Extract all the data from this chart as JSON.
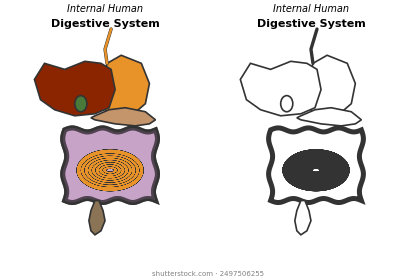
{
  "title_italic": "Internal Human",
  "title_bold": "Digestive System",
  "bg_color": "#ffffff",
  "outline_color": "#333333",
  "liver_color": "#8B2500",
  "stomach_color": "#E8922A",
  "gallbladder_color": "#4A7A3A",
  "pancreas_color": "#C4956A",
  "large_intestine_color": "#B07DB0",
  "small_intestine_color": "#E8922A",
  "rectum_color": "#8B7355",
  "esophagus_color": "#E8922A",
  "watermark": "shutterstock.com · 2497506255",
  "lw": 1.2,
  "fig_width": 4.16,
  "fig_height": 2.8,
  "dpi": 100
}
